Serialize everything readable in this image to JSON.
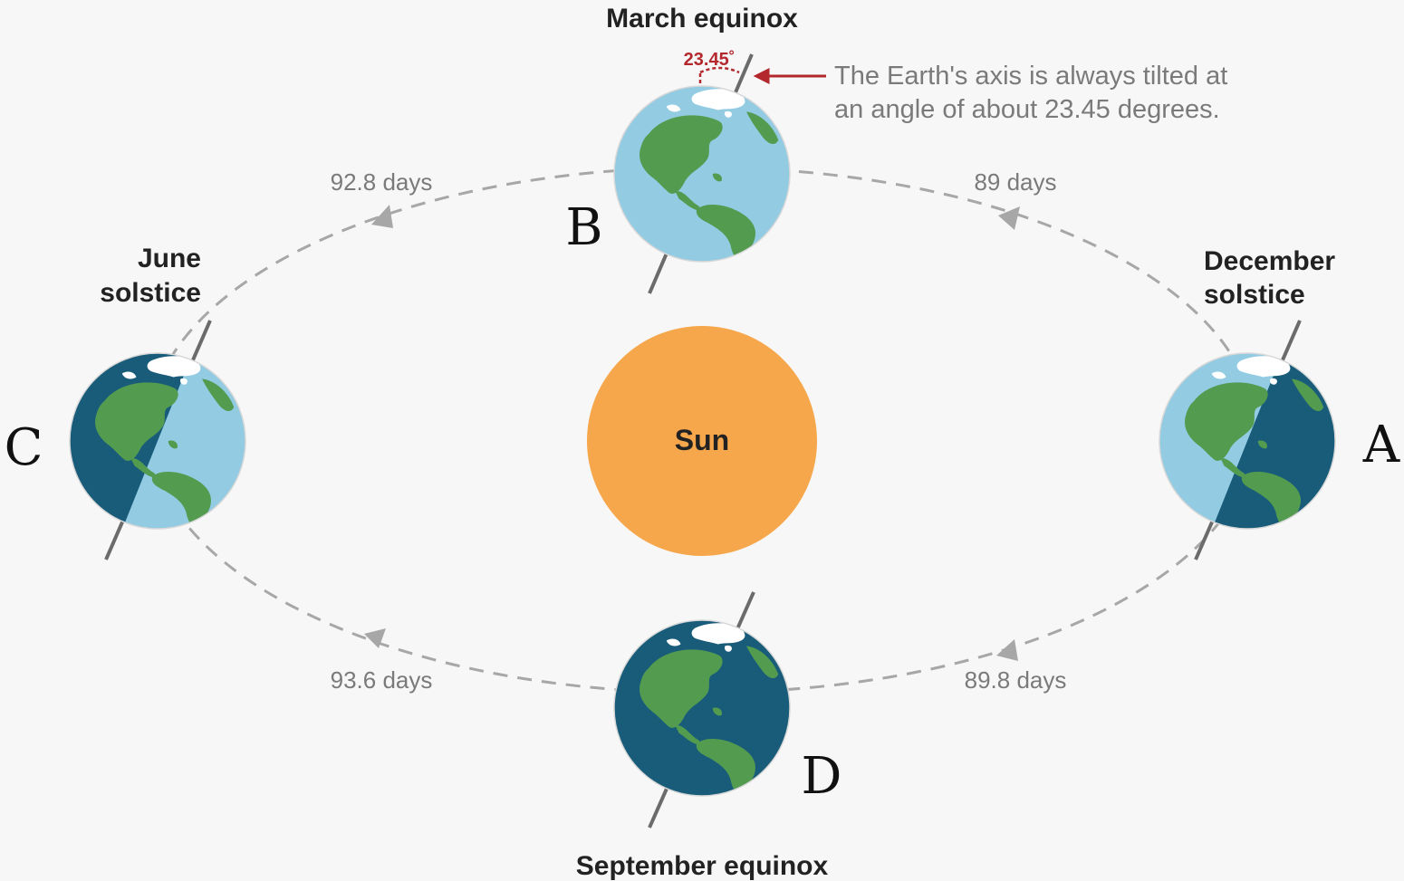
{
  "colors": {
    "background": "#f7f7f7",
    "sun": "#f6a74b",
    "ocean_day": "#93cbe3",
    "ocean_night": "#195c7a",
    "land": "#529b4f",
    "ice": "#ffffff",
    "orbit": "#a7a7a7",
    "axis": "#6b6b6b",
    "angle_accent": "#b3282d"
  },
  "sun_label": "Sun",
  "positions": {
    "march": {
      "title": "March equinox",
      "letter": "B"
    },
    "june": {
      "title_line1": "June",
      "title_line2": "solstice",
      "letter": "C"
    },
    "september": {
      "title": "September equinox",
      "letter": "D"
    },
    "december": {
      "title_line1": "December",
      "title_line2": "solstice",
      "letter": "A"
    }
  },
  "durations": {
    "march_to_june": "92.8 days",
    "december_to_march": "89 days",
    "june_to_september": "93.6 days",
    "september_to_december": "89.8 days"
  },
  "axis_tilt": {
    "angle_label": "23.45˚",
    "note_line1": "The Earth's axis is always tilted at",
    "note_line2": "an angle of about 23.45 degrees."
  },
  "icons": [
    "earth-globe-icon",
    "orbit-arrow-icon",
    "pointer-arrow-icon"
  ]
}
